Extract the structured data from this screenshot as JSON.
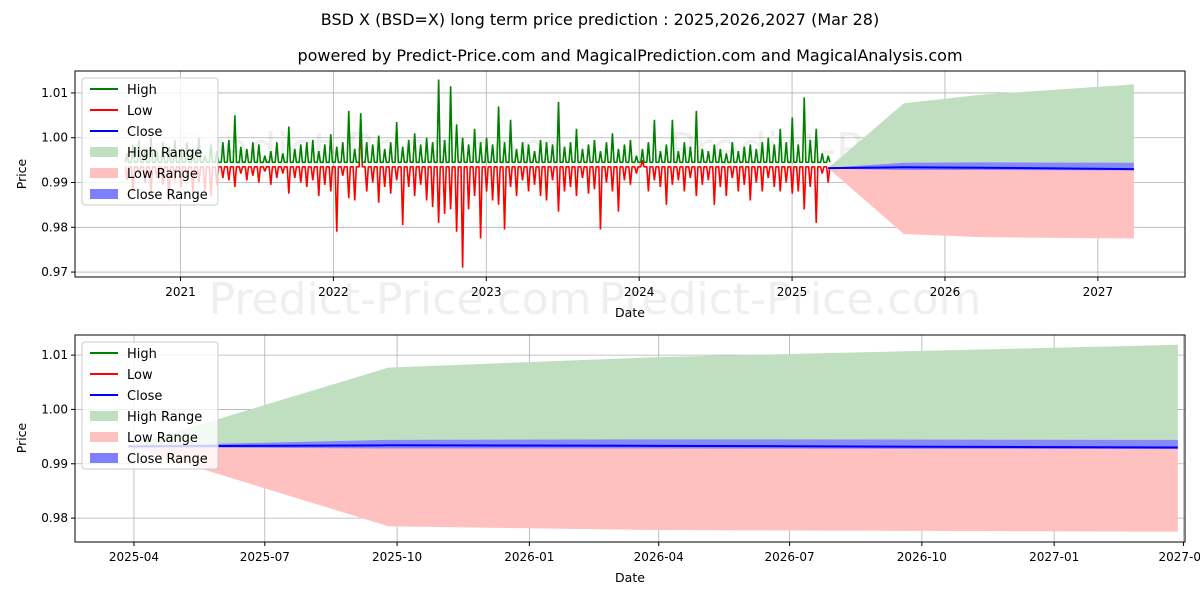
{
  "title": "BSD X (BSD=X) long term price prediction : 2025,2026,2027 (Mar 28)",
  "subtitle": "powered by Predict-Price.com and MagicalPrediction.com and MagicalAnalysis.com",
  "watermark": "Predict-Price.com",
  "colors": {
    "high": "#008000",
    "low": "#ff0000",
    "close": "#0000ff",
    "high_range": "#c0dfc0",
    "low_range": "#ffc0c0",
    "close_range": "#8080ff"
  },
  "legend": [
    "High",
    "Low",
    "Close",
    "High Range",
    "Low Range",
    "Close Range"
  ],
  "chart_data": [
    {
      "type": "line",
      "xlabel": "Date",
      "ylabel": "Price",
      "xlim": [
        2020.31,
        2027.57
      ],
      "ylim": [
        0.9689,
        1.0149
      ],
      "xticks": [
        {
          "v": 2021,
          "label": "2021"
        },
        {
          "v": 2022,
          "label": "2022"
        },
        {
          "v": 2023,
          "label": "2023"
        },
        {
          "v": 2024,
          "label": "2024"
        },
        {
          "v": 2025,
          "label": "2025"
        },
        {
          "v": 2026,
          "label": "2026"
        },
        {
          "v": 2027,
          "label": "2027"
        }
      ],
      "yticks": [
        {
          "v": 0.97,
          "label": "0.97"
        },
        {
          "v": 0.98,
          "label": "0.98"
        },
        {
          "v": 0.99,
          "label": "0.99"
        },
        {
          "v": 1.0,
          "label": "1.00"
        },
        {
          "v": 1.01,
          "label": "1.01"
        }
      ],
      "grid": true,
      "legend_position": "top-left",
      "history": {
        "x_start": 2020.65,
        "x_step_years": 0.0392,
        "high": [
          0.9965,
          0.9985,
          0.9995,
          0.9975,
          1.0,
          0.997,
          0.999,
          0.998,
          0.9995,
          0.9975,
          0.999,
          0.9975,
          1.0,
          0.996,
          0.9985,
          0.997,
          0.999,
          0.9995,
          1.005,
          0.998,
          0.9975,
          0.999,
          0.9985,
          0.996,
          0.997,
          0.999,
          0.9965,
          1.0025,
          0.9975,
          0.9985,
          0.999,
          0.9995,
          0.997,
          0.9985,
          1.0008,
          0.998,
          0.999,
          1.006,
          0.9975,
          1.0055,
          0.999,
          0.9985,
          1.0005,
          0.9975,
          0.999,
          1.0035,
          0.998,
          0.9995,
          1.001,
          0.9985,
          1.0,
          0.999,
          1.013,
          0.9995,
          1.0115,
          1.003,
          1.0,
          0.9985,
          1.002,
          0.999,
          1.0,
          0.9985,
          1.007,
          0.999,
          1.004,
          0.9975,
          0.999,
          0.9985,
          0.997,
          0.9995,
          0.999,
          0.9985,
          1.008,
          0.998,
          0.999,
          1.002,
          0.9975,
          0.9985,
          0.9995,
          0.997,
          0.999,
          1.001,
          0.9975,
          0.9985,
          0.9995,
          0.996,
          0.9975,
          0.999,
          1.004,
          0.997,
          0.9985,
          1.004,
          0.997,
          0.999,
          0.998,
          1.006,
          0.9975,
          0.997,
          0.9985,
          0.9975,
          0.9965,
          0.999,
          0.997,
          0.998,
          0.9985,
          0.9975,
          0.999,
          1.0,
          0.9985,
          1.002,
          0.999,
          1.0045,
          0.9985,
          1.009,
          0.9995,
          1.002,
          0.9965,
          0.996
        ],
        "low": [
          0.9905,
          0.988,
          0.992,
          0.99,
          0.9875,
          0.991,
          0.9895,
          0.986,
          0.9905,
          0.989,
          0.9915,
          0.9875,
          0.99,
          0.988,
          0.987,
          0.9895,
          0.991,
          0.9905,
          0.989,
          0.992,
          0.9905,
          0.9915,
          0.99,
          0.9925,
          0.9895,
          0.991,
          0.992,
          0.9875,
          0.991,
          0.99,
          0.989,
          0.9905,
          0.987,
          0.9895,
          0.988,
          0.979,
          0.9915,
          0.9865,
          0.986,
          1.0025,
          0.988,
          0.99,
          0.9855,
          0.989,
          0.9875,
          0.9905,
          0.9805,
          0.989,
          0.987,
          0.9895,
          0.986,
          0.9845,
          0.981,
          0.983,
          0.984,
          0.979,
          0.971,
          0.984,
          0.987,
          0.9775,
          0.988,
          0.986,
          0.985,
          0.9795,
          0.989,
          0.987,
          0.9905,
          0.988,
          0.9895,
          0.987,
          0.986,
          0.9905,
          0.9835,
          0.988,
          0.989,
          0.987,
          0.991,
          0.9875,
          0.9885,
          0.9795,
          0.99,
          0.988,
          0.9835,
          0.9905,
          0.9895,
          0.992,
          0.995,
          0.988,
          0.9905,
          0.989,
          0.985,
          0.9895,
          0.9905,
          0.988,
          0.991,
          0.987,
          0.9895,
          0.9905,
          0.985,
          0.989,
          0.987,
          0.991,
          0.988,
          0.9895,
          0.986,
          0.99,
          0.988,
          0.991,
          0.989,
          0.988,
          0.99,
          0.9875,
          0.988,
          0.984,
          0.989,
          0.981,
          0.992,
          0.99
        ],
        "high_base": 0.9945,
        "low_base": 0.9935
      }
    },
    {
      "type": "area",
      "xlabel": "Date",
      "ylabel": "Price",
      "xlim": [
        "2025-02-19",
        "2027-04-02"
      ],
      "ylim": [
        0.9756,
        1.0137
      ],
      "xticks": [
        {
          "v": "2025-04-01",
          "label": "2025-04"
        },
        {
          "v": "2025-07-01",
          "label": "2025-07"
        },
        {
          "v": "2025-10-01",
          "label": "2025-10"
        },
        {
          "v": "2026-01-01",
          "label": "2026-01"
        },
        {
          "v": "2026-04-01",
          "label": "2026-04"
        },
        {
          "v": "2026-07-01",
          "label": "2026-07"
        },
        {
          "v": "2026-10-01",
          "label": "2026-10"
        },
        {
          "v": "2027-01-01",
          "label": "2027-01"
        },
        {
          "v": "2027-04-01",
          "label": "2027-04"
        }
      ],
      "yticks": [
        {
          "v": 0.98,
          "label": "0.98"
        },
        {
          "v": 0.99,
          "label": "0.99"
        },
        {
          "v": 1.0,
          "label": "1.00"
        },
        {
          "v": 1.01,
          "label": "1.01"
        }
      ],
      "grid": true,
      "legend_position": "top-left"
    }
  ],
  "forecast": {
    "dates": [
      "2025-03-28",
      "2025-09-25",
      "2026-03-28",
      "2027-03-28"
    ],
    "high": [
      0.9932,
      1.0077,
      1.0096,
      1.0119
    ],
    "low": [
      0.9932,
      0.9785,
      0.9778,
      0.9775
    ],
    "close": [
      0.9932,
      0.9934,
      0.9933,
      0.993
    ],
    "close_upper": [
      0.9933,
      0.9944,
      0.9945,
      0.9944
    ],
    "close_lower": [
      0.9931,
      0.9928,
      0.9928,
      0.9927
    ]
  }
}
